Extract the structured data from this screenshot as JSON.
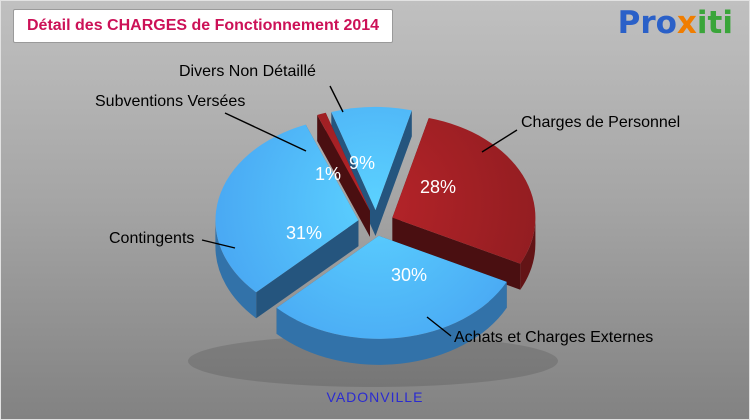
{
  "title": "Détail des CHARGES de Fonctionnement 2014",
  "logo": {
    "name": "Proxiti",
    "parts": [
      {
        "text": "Pro",
        "color": "#2a60c8"
      },
      {
        "text": "x",
        "color": "#f07d00"
      },
      {
        "text": "iti",
        "color": "#3aa53a"
      }
    ]
  },
  "colors": {
    "title_text": "#cc1157",
    "footer_text": "#2b2bd0",
    "background_top": "#c0c0c0",
    "background_bottom": "#828282",
    "blue_slice": "#47a3f2",
    "dark_red_slice": "#8e1c20",
    "percent_label": "#ffffff",
    "callout_text": "#000000"
  },
  "chart_data": {
    "type": "pie",
    "style": "3d-exploded",
    "title": "Détail des CHARGES de Fonctionnement 2014",
    "unit": "%",
    "start_angle_deg": -108,
    "direction": "clockwise",
    "legend_position": "callout-labels",
    "slices": [
      {
        "label": "Divers Non Détaillé",
        "value": 9,
        "color": "#47a3f2"
      },
      {
        "label": "Charges de Personnel",
        "value": 28,
        "color": "#8e1c20"
      },
      {
        "label": "Achats et Charges Externes",
        "value": 30,
        "color": "#47a3f2"
      },
      {
        "label": "Contingents",
        "value": 31,
        "color": "#47a3f2"
      },
      {
        "label": "Subventions Versées",
        "value": 1,
        "color": "#8e1c20"
      }
    ],
    "footer": "VADONVILLE"
  }
}
